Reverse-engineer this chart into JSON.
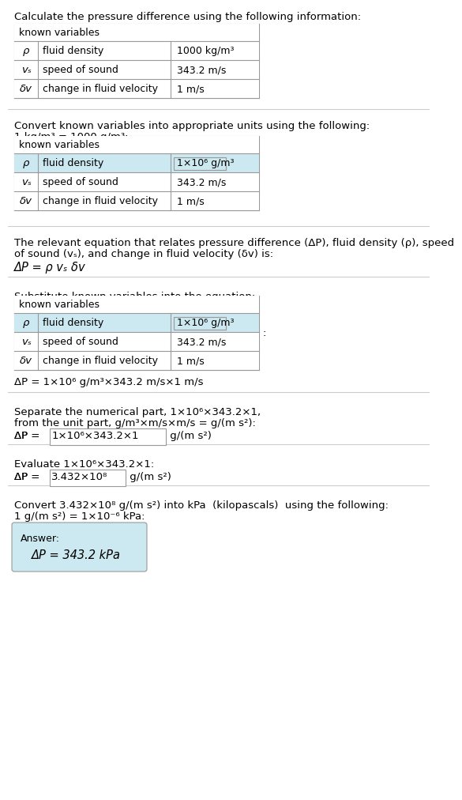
{
  "title_text": "Calculate the pressure difference using the following information:",
  "section1_table_header": "known variables",
  "section1_rows": [
    [
      "ρ",
      "fluid density",
      "1000 kg/m³"
    ],
    [
      "vₛ",
      "speed of sound",
      "343.2 m/s"
    ],
    [
      "δv",
      "change in fluid velocity",
      "1 m/s"
    ]
  ],
  "section2_intro": "Convert known variables into appropriate units using the following:",
  "section2_conversion": "1 kg/m³ = 1000 g/m³:",
  "section2_table_header": "known variables",
  "section2_rows": [
    [
      "ρ",
      "fluid density",
      "1×10⁶ g/m³"
    ],
    [
      "vₛ",
      "speed of sound",
      "343.2 m/s"
    ],
    [
      "δv",
      "change in fluid velocity",
      "1 m/s"
    ]
  ],
  "section3_line1": "The relevant equation that relates pressure difference (ΔP), fluid density (ρ), speed",
  "section3_line2": "of sound (vₛ), and change in fluid velocity (δv) is:",
  "section3_equation": "ΔP = ρ vₛ δv",
  "section4_intro": "Substitute known variables into the equation:",
  "section4_table_header": "known variables",
  "section4_rows": [
    [
      "ρ",
      "fluid density",
      "1×10⁶ g/m³"
    ],
    [
      "vₛ",
      "speed of sound",
      "343.2 m/s"
    ],
    [
      "δv",
      "change in fluid velocity",
      "1 m/s"
    ]
  ],
  "section4_equation": "ΔP = 1×10⁶ g/m³×343.2 m/s×1 m/s",
  "section5_line1": "Separate the numerical part, 1×10⁶×343.2×1,",
  "section5_line2": "from the unit part, g/m³×m/s×m/s = g/(m s²):",
  "section5_prefix": "ΔP = ",
  "section5_boxed": "1×10⁶×343.2×1",
  "section5_unit": " g/(m s²)",
  "section6_intro": "Evaluate 1×10⁶×343.2×1:",
  "section6_prefix": "ΔP = ",
  "section6_boxed": "3.432×10⁸",
  "section6_unit": " g/(m s²)",
  "section7_line1": "Convert 3.432×10⁸ g/(m s²) into kPa  (kilopascals)  using the following:",
  "section7_line2": "1 g/(m s²) = 1×10⁻⁶ kPa:",
  "answer_label": "Answer:",
  "answer_equation": "ΔP = 343.2 kPa",
  "bg_color": "#ffffff",
  "table_border_color": "#999999",
  "separator_color": "#cccccc",
  "text_color": "#000000",
  "highlight_color": "#cce8f0",
  "answer_bg_color": "#cce8f0",
  "font_size": 9.5,
  "small_font_size": 9.0
}
